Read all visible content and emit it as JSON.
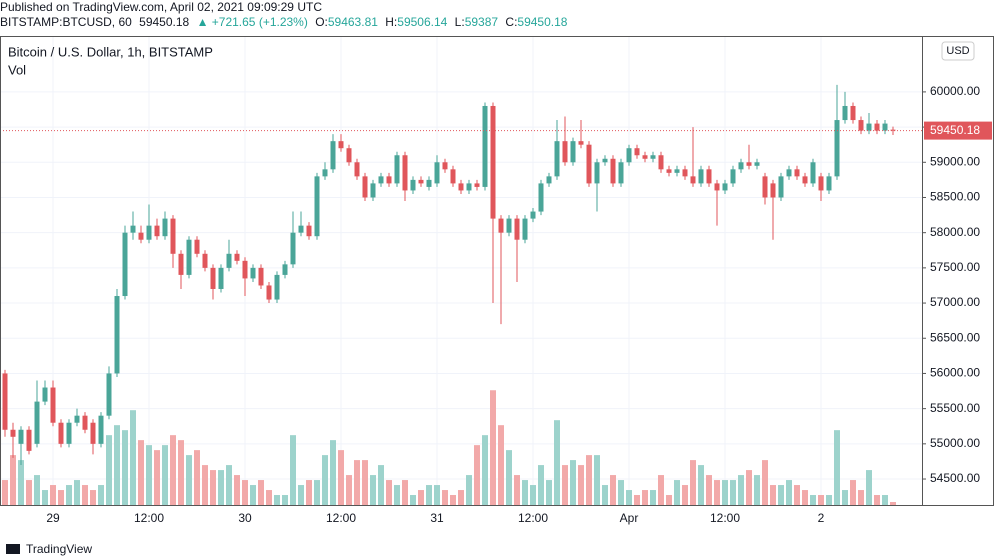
{
  "header": {
    "published": "Published on TradingView.com, April 02, 2021 09:09:29 UTC",
    "symbol": "BITSTAMP:BTCUSD, 60",
    "change": "▲ +721.65 (+1.23%)",
    "ohlc_labels": [
      "O:",
      "H:",
      "L:",
      "C:"
    ]
  },
  "footer": {
    "brand": "TradingView"
  },
  "chart_data": {
    "type": "candlestick",
    "title": "Bitcoin / U.S. Dollar, 1h, BITSTAMP",
    "volume_label": "Vol",
    "currency": "USD",
    "categories": [
      null,
      null,
      null,
      null,
      null,
      null,
      "29",
      null,
      null,
      null,
      null,
      null,
      null,
      null,
      null,
      null,
      null,
      null,
      "12:00",
      null,
      null,
      null,
      null,
      null,
      null,
      null,
      null,
      null,
      null,
      null,
      "30",
      null,
      null,
      null,
      null,
      null,
      null,
      null,
      null,
      null,
      null,
      null,
      "12:00",
      null,
      null,
      null,
      null,
      null,
      null,
      null,
      null,
      null,
      null,
      null,
      "31",
      null,
      null,
      null,
      null,
      null,
      null,
      null,
      null,
      null,
      null,
      null,
      "12:00",
      null,
      null,
      null,
      null,
      null,
      null,
      null,
      null,
      null,
      null,
      null,
      "Apr",
      null,
      null,
      null,
      null,
      null,
      null,
      null,
      null,
      null,
      null,
      null,
      "12:00",
      null,
      null,
      null,
      null,
      null,
      null,
      null,
      null,
      null,
      null,
      null,
      "2",
      null,
      null,
      null,
      null,
      null,
      null,
      null,
      null,
      null
    ],
    "open": [
      56000,
      55200,
      55000,
      55200,
      55000,
      55600,
      55800,
      55300,
      55000,
      55300,
      55400,
      55300,
      55000,
      55400,
      56000,
      57100,
      58000,
      58000,
      57900,
      58100,
      57950,
      58200,
      57700,
      57400,
      57900,
      57700,
      57500,
      57200,
      57500,
      57700,
      57600,
      57350,
      57500,
      57250,
      57050,
      57400,
      57550,
      58000,
      58100,
      57950,
      58800,
      58900,
      59300,
      59200,
      59000,
      58800,
      58500,
      58700,
      58800,
      58700,
      59100,
      58600,
      58750,
      58650,
      58700,
      59000,
      58900,
      58700,
      58600,
      58700,
      58650,
      59800,
      58200,
      58000,
      58200,
      57900,
      58200,
      58300,
      58700,
      58800,
      59300,
      59000,
      59300,
      59250,
      58700,
      59000,
      59050,
      58700,
      59000,
      59200,
      59100,
      59050,
      59100,
      58900,
      58850,
      58900,
      58800,
      58700,
      58900,
      58700,
      58600,
      58700,
      58900,
      59000,
      58950,
      58800,
      58700,
      58500,
      58800,
      58900,
      58800,
      58700,
      58800,
      58600,
      58800,
      59600,
      59800,
      59600,
      59450,
      59550,
      59450,
      59463.81
    ],
    "high": [
      56050,
      55300,
      55250,
      55250,
      55900,
      55900,
      55900,
      55350,
      55350,
      55500,
      55450,
      55350,
      55450,
      56100,
      57200,
      58100,
      58300,
      58100,
      58400,
      58200,
      58300,
      58250,
      57750,
      57950,
      57950,
      57750,
      57550,
      57550,
      57900,
      57750,
      57650,
      57550,
      57550,
      57300,
      57450,
      57600,
      58300,
      58300,
      58150,
      58850,
      59000,
      59400,
      59400,
      59250,
      59050,
      58850,
      58750,
      58850,
      58850,
      59150,
      59150,
      58800,
      58800,
      58800,
      59100,
      59050,
      58950,
      58750,
      58750,
      58750,
      59850,
      59850,
      58250,
      58250,
      58250,
      58250,
      58350,
      58750,
      58850,
      59600,
      59650,
      59350,
      59600,
      59300,
      59050,
      59100,
      59100,
      59050,
      59250,
      59250,
      59150,
      59150,
      59150,
      58950,
      58950,
      58950,
      59500,
      58950,
      58950,
      58750,
      58750,
      58950,
      59050,
      59250,
      59050,
      58850,
      58750,
      58850,
      58950,
      58950,
      58850,
      59050,
      58850,
      58850,
      60100,
      60000,
      59850,
      59650,
      59700,
      59600,
      59600,
      59506.14
    ],
    "low": [
      55100,
      54800,
      54700,
      54850,
      54950,
      55550,
      55250,
      54950,
      54950,
      55250,
      55150,
      54850,
      54950,
      55350,
      55950,
      57050,
      57900,
      57850,
      57850,
      57900,
      57900,
      57500,
      57200,
      57350,
      57650,
      57450,
      57050,
      57150,
      57450,
      57550,
      57100,
      57300,
      57200,
      57000,
      57000,
      57350,
      57500,
      57950,
      57900,
      57900,
      58750,
      58850,
      59150,
      58950,
      58750,
      58450,
      58450,
      58650,
      58650,
      58650,
      58450,
      58550,
      58650,
      58600,
      58650,
      58850,
      58650,
      58550,
      58550,
      58600,
      58600,
      57000,
      56700,
      57950,
      57300,
      57850,
      58150,
      58250,
      58650,
      58750,
      58950,
      58950,
      59200,
      58650,
      58300,
      58950,
      58650,
      58650,
      58950,
      59050,
      59000,
      59000,
      58850,
      58800,
      58800,
      58750,
      58650,
      58650,
      58650,
      58100,
      58550,
      58650,
      58850,
      58900,
      58900,
      58400,
      57900,
      58450,
      58750,
      58750,
      58650,
      58650,
      58450,
      58550,
      58750,
      59550,
      59550,
      59400,
      59400,
      59400,
      59400,
      59387
    ],
    "close": [
      55200,
      55100,
      55200,
      54900,
      55600,
      55800,
      55300,
      55000,
      55300,
      55400,
      55200,
      55000,
      55400,
      56000,
      57100,
      58000,
      58100,
      57900,
      58100,
      57950,
      58200,
      57700,
      57400,
      57900,
      57700,
      57500,
      57200,
      57500,
      57700,
      57600,
      57350,
      57500,
      57250,
      57050,
      57400,
      57550,
      58000,
      58100,
      57950,
      58800,
      58900,
      59300,
      59200,
      59000,
      58800,
      58500,
      58700,
      58800,
      58700,
      59100,
      58600,
      58750,
      58700,
      58750,
      59000,
      58900,
      58700,
      58600,
      58700,
      58650,
      59800,
      58200,
      58000,
      58200,
      57900,
      58200,
      58300,
      58700,
      58800,
      59300,
      59000,
      59300,
      59250,
      58700,
      59000,
      59050,
      58700,
      59000,
      59200,
      59100,
      59050,
      59100,
      58900,
      58850,
      58900,
      58800,
      58700,
      58900,
      58700,
      58600,
      58700,
      58900,
      59000,
      58950,
      59000,
      58500,
      58500,
      58800,
      58900,
      58800,
      58700,
      59000,
      58600,
      58800,
      59600,
      59800,
      59600,
      59450,
      59550,
      59450,
      59550,
      59450.18
    ],
    "volume": [
      25,
      50,
      45,
      25,
      30,
      15,
      20,
      15,
      20,
      25,
      20,
      15,
      20,
      70,
      80,
      75,
      95,
      65,
      60,
      55,
      60,
      70,
      65,
      50,
      55,
      40,
      35,
      35,
      40,
      30,
      25,
      20,
      25,
      15,
      10,
      10,
      70,
      20,
      25,
      25,
      50,
      65,
      55,
      30,
      45,
      45,
      30,
      40,
      25,
      20,
      25,
      10,
      15,
      20,
      20,
      15,
      10,
      15,
      30,
      60,
      70,
      115,
      80,
      55,
      30,
      25,
      20,
      40,
      25,
      85,
      40,
      45,
      40,
      50,
      50,
      20,
      30,
      25,
      15,
      10,
      15,
      15,
      30,
      10,
      25,
      20,
      45,
      40,
      30,
      25,
      25,
      25,
      30,
      35,
      30,
      45,
      20,
      20,
      25,
      20,
      15,
      10,
      10,
      10,
      75,
      15,
      25,
      15,
      35,
      10,
      10,
      3
    ],
    "ylim": [
      54131,
      60780
    ],
    "vol_ylim": [
      0,
      469
    ],
    "yticks": [
      {
        "value": 54500,
        "label": "54500.00"
      },
      {
        "value": 55000,
        "label": "55000.00"
      },
      {
        "value": 55500,
        "label": "55500.00"
      },
      {
        "value": 56000,
        "label": "56000.00"
      },
      {
        "value": 56500,
        "label": "56500.00"
      },
      {
        "value": 57000,
        "label": "57000.00"
      },
      {
        "value": 57500,
        "label": "57500.00"
      },
      {
        "value": 58000,
        "label": "58000.00"
      },
      {
        "value": 58500,
        "label": "58500.00"
      },
      {
        "value": 59000,
        "label": "59000.00"
      },
      {
        "value": 59500,
        "label": "59500.00"
      },
      {
        "value": 60000,
        "label": "60000.00"
      }
    ],
    "grid": true,
    "up_color": "#4aa598",
    "down_color": "#e0565b",
    "up_volume_color": "#9dd3cc",
    "down_volume_color": "#f2a9a9"
  }
}
